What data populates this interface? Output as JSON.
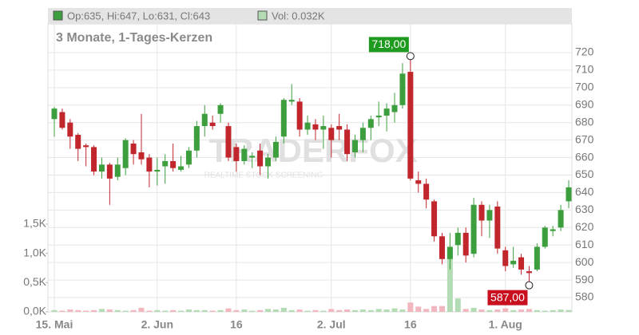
{
  "chart_data": {
    "type": "candlestick",
    "subtitle": "3 Monate, 1-Tages-Kerzen",
    "legend": [
      "Op:635, Hi:647, Lo:631, Cl:643",
      "Vol: 0.032K"
    ],
    "watermark": [
      "TRADERFOX",
      "REALTIME STOCK SCREENING"
    ],
    "categories": [
      "15. Mai",
      null,
      null,
      null,
      null,
      null,
      null,
      null,
      null,
      null,
      null,
      null,
      null,
      "2. Jun",
      null,
      null,
      null,
      null,
      null,
      null,
      null,
      null,
      null,
      "16",
      null,
      null,
      null,
      null,
      null,
      null,
      null,
      null,
      null,
      null,
      null,
      "2. Jul",
      null,
      null,
      null,
      null,
      null,
      null,
      null,
      null,
      null,
      "16",
      null,
      null,
      null,
      null,
      null,
      null,
      null,
      null,
      null,
      null,
      null,
      "1. Aug",
      null,
      null,
      null,
      null,
      null,
      null,
      null,
      null
    ],
    "open": [
      682,
      686,
      680,
      673,
      667,
      666,
      652,
      656,
      649,
      654,
      668,
      663,
      660,
      652,
      655,
      658,
      653,
      656,
      664,
      678,
      680,
      685,
      678,
      666,
      658,
      660,
      664,
      655,
      660,
      672,
      692,
      692,
      676,
      679,
      676,
      677,
      678,
      676,
      663,
      670,
      677,
      683,
      684,
      686,
      690,
      709,
      647,
      645,
      635,
      615,
      602,
      610,
      617,
      605,
      633,
      624,
      632,
      607,
      599,
      603,
      595,
      596,
      609,
      618,
      620,
      635
    ],
    "high": [
      689,
      688,
      682,
      674,
      668,
      667,
      660,
      657,
      660,
      671,
      670,
      685,
      662,
      660,
      662,
      668,
      661,
      666,
      681,
      690,
      684,
      691,
      680,
      668,
      667,
      663,
      668,
      662,
      672,
      694,
      702,
      694,
      684,
      682,
      684,
      679,
      685,
      679,
      673,
      680,
      684,
      692,
      691,
      697,
      714,
      718,
      652,
      648,
      636,
      617,
      617,
      620,
      620,
      637,
      635,
      633,
      635,
      609,
      609,
      605,
      598,
      611,
      621,
      621,
      633,
      647
    ],
    "low": [
      672,
      676,
      665,
      658,
      655,
      650,
      648,
      633,
      647,
      650,
      656,
      656,
      643,
      644,
      645,
      652,
      652,
      654,
      660,
      672,
      676,
      680,
      658,
      652,
      656,
      654,
      650,
      648,
      658,
      668,
      690,
      672,
      673,
      670,
      665,
      660,
      670,
      658,
      660,
      663,
      670,
      678,
      675,
      680,
      688,
      647,
      640,
      631,
      612,
      599,
      596,
      604,
      600,
      603,
      615,
      614,
      605,
      595,
      597,
      593,
      587,
      595,
      608,
      615,
      618,
      631
    ],
    "close": [
      688,
      677,
      672,
      665,
      666,
      652,
      656,
      648,
      656,
      670,
      662,
      659,
      652,
      653,
      658,
      654,
      655,
      664,
      678,
      685,
      678,
      690,
      660,
      658,
      665,
      661,
      655,
      660,
      669,
      693,
      693,
      676,
      680,
      676,
      678,
      670,
      676,
      662,
      670,
      677,
      682,
      684,
      688,
      690,
      708,
      648,
      645,
      636,
      615,
      602,
      609,
      617,
      604,
      633,
      624,
      630,
      608,
      598,
      601,
      596,
      594,
      609,
      620,
      619,
      630,
      643
    ],
    "volume": [
      0.03,
      0.02,
      0.04,
      0.03,
      0.02,
      0.03,
      0.05,
      0.04,
      0.03,
      0.02,
      0.03,
      0.07,
      0.02,
      0.03,
      0.02,
      0.03,
      0.02,
      0.04,
      0.03,
      0.03,
      0.02,
      0.03,
      0.06,
      0.03,
      0.04,
      0.02,
      0.03,
      0.05,
      0.04,
      0.07,
      0.03,
      0.04,
      0.02,
      0.03,
      0.02,
      0.05,
      0.03,
      0.04,
      0.03,
      0.04,
      0.03,
      0.05,
      0.04,
      0.06,
      0.04,
      0.16,
      0.09,
      0.05,
      0.1,
      0.1,
      1.05,
      0.23,
      0.05,
      0.07,
      0.04,
      0.03,
      0.04,
      0.06,
      0.03,
      0.04,
      0.05,
      0.03,
      0.02,
      0.03,
      0.04,
      0.032
    ],
    "up_color": "#3c9e3c",
    "down_color": "#c0262c",
    "volume_up_color": "#b4dcb4",
    "volume_down_color": "#f2b6be",
    "ylim": [
      571.8,
      736.4
    ],
    "yticks": [
      580,
      590,
      600,
      610,
      620,
      630,
      640,
      650,
      660,
      670,
      680,
      690,
      700,
      710,
      720
    ],
    "y2lim": [
      0,
      4.92
    ],
    "y2ticks": [
      {
        "value": 0,
        "label": "0,0K"
      },
      {
        "value": 0.5,
        "label": "0,5K"
      },
      {
        "value": 1,
        "label": "1,0K"
      },
      {
        "value": 1.5,
        "label": "1,5K"
      }
    ],
    "annotations": [
      {
        "label": "718,00",
        "value": 718,
        "of": "high",
        "color": "#1e9a1e"
      },
      {
        "label": "587,00",
        "value": 587,
        "of": "low",
        "color": "#c8101e"
      }
    ],
    "grid": true
  }
}
